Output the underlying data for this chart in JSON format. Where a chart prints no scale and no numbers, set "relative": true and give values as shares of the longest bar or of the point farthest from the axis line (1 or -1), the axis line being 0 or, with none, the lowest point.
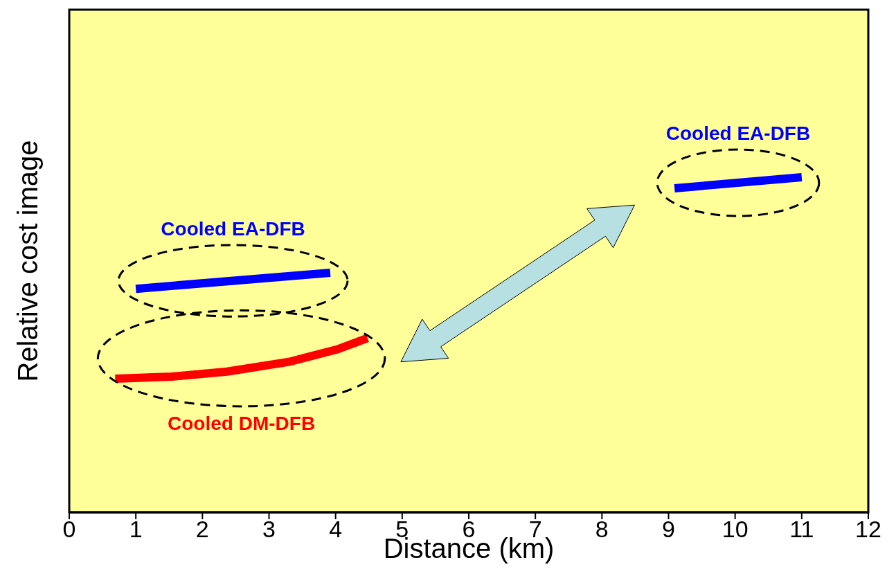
{
  "chart_data": {
    "type": "line",
    "xlabel": "Distance (km)",
    "ylabel": "Relative cost image",
    "relative": true,
    "xlim": [
      0,
      12
    ],
    "xticks": [
      0,
      1,
      2,
      3,
      4,
      5,
      6,
      7,
      8,
      9,
      10,
      11,
      12
    ],
    "marker": "none",
    "line_style": "solid",
    "series": [
      {
        "name": "Cooled EA-DFB",
        "color": "#0000ff",
        "x": [
          1.0,
          3.92
        ],
        "values": [
          0.667,
          0.715
        ]
      },
      {
        "name": "Cooled DM-DFB",
        "color": "#ff0000",
        "x": [
          0.69,
          1.54,
          2.37,
          3.3,
          4.02,
          4.48
        ],
        "values": [
          0.399,
          0.405,
          0.42,
          0.449,
          0.486,
          0.52
        ]
      },
      {
        "name": "Cooled EA-DFB",
        "color": "#0000ff",
        "x": [
          9.09,
          11.0
        ],
        "values": [
          0.967,
          1.0
        ]
      }
    ]
  }
}
